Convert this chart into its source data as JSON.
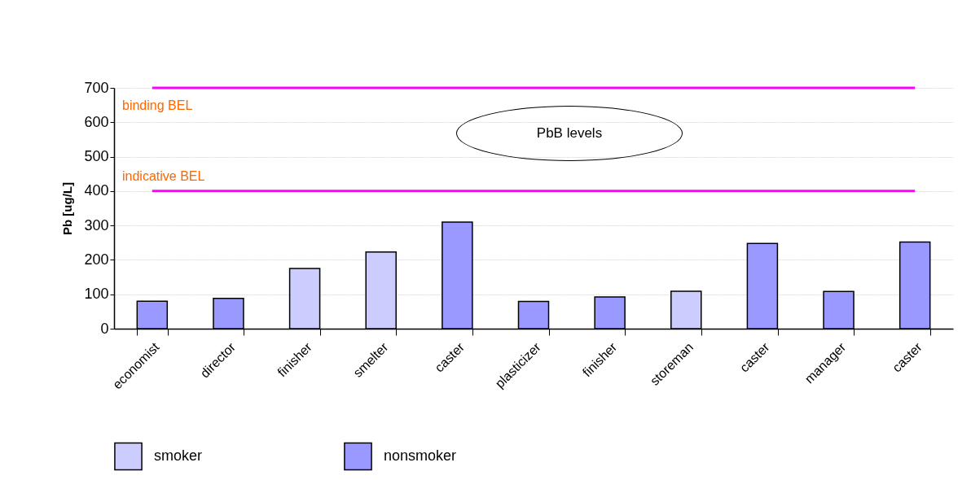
{
  "chart_data": {
    "type": "bar",
    "ylabel": "Pb [ug/L]",
    "categories": [
      "economist",
      "director",
      "finisher",
      "smelter",
      "caster",
      "plasticizer",
      "finisher",
      "storeman",
      "caster",
      "manager",
      "caster"
    ],
    "series": [
      {
        "name": "smoker",
        "color": "#ccccff",
        "values": [
          null,
          null,
          175,
          223,
          null,
          null,
          null,
          109,
          null,
          null,
          null
        ]
      },
      {
        "name": "nonsmoker",
        "color": "#9999ff",
        "values": [
          80,
          88,
          null,
          null,
          310,
          79,
          92,
          null,
          248,
          108,
          252
        ]
      }
    ],
    "ylim": [
      0,
      700
    ],
    "yticks": [
      0,
      100,
      200,
      300,
      400,
      500,
      600,
      700
    ],
    "grid": "y",
    "legend": "bottom",
    "ref_lines": [
      {
        "axis": "y",
        "value": 700,
        "label": "binding BEL",
        "color": "#ff00ff"
      },
      {
        "axis": "y",
        "value": 400,
        "label": "indicative BEL",
        "color": "#ff00ff"
      }
    ],
    "annotations": [
      "PbB levels"
    ]
  }
}
